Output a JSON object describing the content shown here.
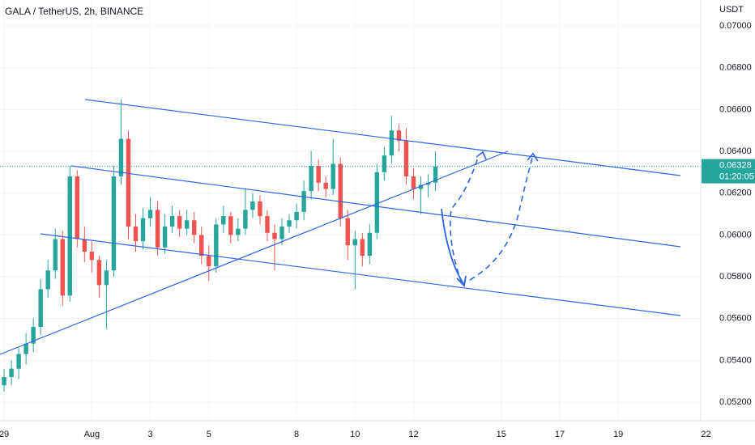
{
  "chart_data": {
    "type": "candlestick",
    "title": "GALA / TetherUS, 2h, BINANCE",
    "y_label": "USDT",
    "countdown": "01:20:05",
    "xlim": [
      -0.14,
      23.82
    ],
    "ylim": [
      0.05111,
      0.07124
    ],
    "grid": true,
    "up_color": "#26a69a",
    "down_color": "#ef5350",
    "xticks": [
      {
        "value": 0,
        "label": "29"
      },
      {
        "value": 3,
        "label": "Aug"
      },
      {
        "value": 5,
        "label": "3"
      },
      {
        "value": 7,
        "label": "5"
      },
      {
        "value": 10,
        "label": "8"
      },
      {
        "value": 12,
        "label": "10"
      },
      {
        "value": 14,
        "label": "12"
      },
      {
        "value": 17,
        "label": "15"
      },
      {
        "value": 19,
        "label": "17"
      },
      {
        "value": 21,
        "label": "19"
      },
      {
        "value": 24,
        "label": "22"
      }
    ],
    "yticks": [
      {
        "value": 0.052,
        "label": "0.05200"
      },
      {
        "value": 0.054,
        "label": "0.05400"
      },
      {
        "value": 0.056,
        "label": "0.05600"
      },
      {
        "value": 0.058,
        "label": "0.05800"
      },
      {
        "value": 0.06,
        "label": "0.06000"
      },
      {
        "value": 0.062,
        "label": "0.06200"
      },
      {
        "value": 0.064,
        "label": "0.06400"
      },
      {
        "value": 0.066,
        "label": "0.06600"
      },
      {
        "value": 0.068,
        "label": "0.06800"
      },
      {
        "value": 0.07,
        "label": "0.07000"
      }
    ],
    "series": [
      {
        "x": [
          0,
          0.25,
          0.5,
          0.75,
          1,
          1.25,
          1.5,
          1.75,
          2,
          2.25,
          2.5,
          2.75,
          3,
          3.25,
          3.5,
          3.75,
          4,
          4.25,
          4.5,
          4.75,
          5,
          5.25,
          5.5,
          5.75,
          6,
          6.25,
          6.5,
          6.75,
          7,
          7.25,
          7.5,
          7.75,
          8,
          8.25,
          8.5,
          8.75,
          9,
          9.25,
          9.5,
          9.75,
          10,
          10.25,
          10.5,
          10.75,
          11,
          11.25,
          11.5,
          11.75,
          12,
          12.25,
          12.5,
          12.75,
          13,
          13.25,
          13.5,
          13.75,
          14,
          14.25,
          14.5,
          14.75
        ],
        "open": [
          0.0528,
          0.0532,
          0.0536,
          0.0543,
          0.0548,
          0.0556,
          0.0574,
          0.0583,
          0.0598,
          0.0571,
          0.0628,
          0.0598,
          0.0592,
          0.0588,
          0.0576,
          0.0583,
          0.0628,
          0.0646,
          0.0604,
          0.0597,
          0.0608,
          0.0612,
          0.0594,
          0.0604,
          0.0609,
          0.0603,
          0.0607,
          0.06,
          0.059,
          0.0585,
          0.0605,
          0.0609,
          0.06,
          0.0603,
          0.0612,
          0.0616,
          0.0609,
          0.0601,
          0.0598,
          0.0604,
          0.0607,
          0.0611,
          0.0621,
          0.0633,
          0.0625,
          0.0622,
          0.0634,
          0.0608,
          0.0595,
          0.0598,
          0.059,
          0.0601,
          0.063,
          0.0638,
          0.065,
          0.0645,
          0.0628,
          0.0622,
          0.0624,
          0.0625
        ],
        "high": [
          0.0536,
          0.054,
          0.0546,
          0.0553,
          0.056,
          0.0579,
          0.0588,
          0.0603,
          0.0602,
          0.0633,
          0.0631,
          0.0604,
          0.0597,
          0.059,
          0.0588,
          0.0633,
          0.0665,
          0.065,
          0.061,
          0.0613,
          0.0618,
          0.0616,
          0.061,
          0.0614,
          0.0612,
          0.0612,
          0.0611,
          0.0604,
          0.0595,
          0.0608,
          0.0614,
          0.0611,
          0.0608,
          0.0622,
          0.062,
          0.0619,
          0.0612,
          0.0605,
          0.0608,
          0.061,
          0.0615,
          0.0626,
          0.064,
          0.0636,
          0.0628,
          0.0646,
          0.0637,
          0.0612,
          0.0602,
          0.0601,
          0.0605,
          0.0634,
          0.0642,
          0.0657,
          0.0653,
          0.0651,
          0.0632,
          0.0628,
          0.0629,
          0.064
        ],
        "low": [
          0.0525,
          0.0528,
          0.0531,
          0.0538,
          0.0544,
          0.0552,
          0.057,
          0.0579,
          0.0566,
          0.0568,
          0.0594,
          0.0587,
          0.0582,
          0.057,
          0.0555,
          0.058,
          0.0624,
          0.0598,
          0.0592,
          0.0593,
          0.0604,
          0.059,
          0.0591,
          0.0601,
          0.0599,
          0.06,
          0.0596,
          0.0586,
          0.0578,
          0.0582,
          0.0601,
          0.0596,
          0.0597,
          0.06,
          0.0608,
          0.0605,
          0.0597,
          0.0583,
          0.0595,
          0.0601,
          0.0603,
          0.0607,
          0.0617,
          0.0621,
          0.0618,
          0.0619,
          0.0604,
          0.0588,
          0.0574,
          0.0585,
          0.0586,
          0.0598,
          0.0626,
          0.0634,
          0.064,
          0.0624,
          0.0617,
          0.061,
          0.0618,
          0.0621
        ],
        "close": [
          0.0532,
          0.0536,
          0.0543,
          0.0548,
          0.0556,
          0.0574,
          0.0583,
          0.0598,
          0.0571,
          0.0628,
          0.0598,
          0.0592,
          0.0588,
          0.0576,
          0.0583,
          0.0628,
          0.0646,
          0.0604,
          0.0597,
          0.0608,
          0.0612,
          0.0594,
          0.0604,
          0.0609,
          0.0603,
          0.0607,
          0.06,
          0.059,
          0.0585,
          0.0605,
          0.0609,
          0.06,
          0.0603,
          0.0612,
          0.0616,
          0.0609,
          0.0601,
          0.0598,
          0.0604,
          0.0607,
          0.0611,
          0.0621,
          0.0633,
          0.0625,
          0.0622,
          0.0634,
          0.0608,
          0.0595,
          0.0598,
          0.059,
          0.0601,
          0.063,
          0.0638,
          0.065,
          0.0645,
          0.0628,
          0.0622,
          0.0624,
          0.0625,
          0.06328
        ]
      }
    ]
  }
}
